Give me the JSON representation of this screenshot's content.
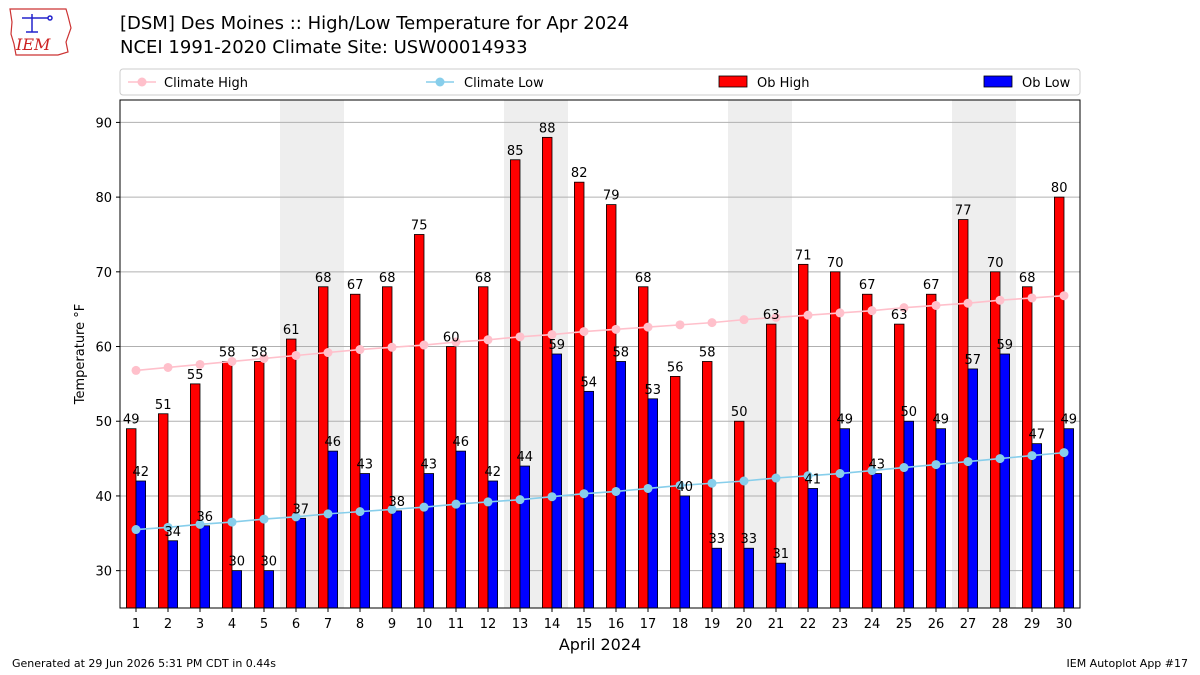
{
  "header": {
    "logo_text": "IEM",
    "title": "[DSM] Des Moines :: High/Low Temperature for Apr 2024",
    "subtitle": "NCEI 1991-2020 Climate Site: USW00014933"
  },
  "footer": {
    "generated": "Generated at 29 Jun 2026 5:31 PM CDT in 0.44s",
    "app": "IEM Autoplot App #17"
  },
  "colors": {
    "ob_high": "#ff0000",
    "ob_low": "#0000ff",
    "climate_high": "#ffc0cb",
    "climate_low": "#87ceeb",
    "weekend_shade": "#eeeeee"
  },
  "chart_data": {
    "type": "bar",
    "xlabel": "April 2024",
    "ylabel": "Temperature °F",
    "ylim": [
      25,
      93
    ],
    "yticks": [
      30,
      40,
      50,
      60,
      70,
      80,
      90
    ],
    "grid": true,
    "legend_position": "top",
    "x": [
      1,
      2,
      3,
      4,
      5,
      6,
      7,
      8,
      9,
      10,
      11,
      12,
      13,
      14,
      15,
      16,
      17,
      18,
      19,
      20,
      21,
      22,
      23,
      24,
      25,
      26,
      27,
      28,
      29,
      30
    ],
    "shaded_days": [
      6,
      7,
      13,
      14,
      20,
      21,
      27,
      28
    ],
    "series": [
      {
        "name": "Climate High",
        "kind": "line",
        "values": [
          56.8,
          57.2,
          57.6,
          58.0,
          58.4,
          58.8,
          59.2,
          59.6,
          59.9,
          60.2,
          60.6,
          60.9,
          61.3,
          61.6,
          62.0,
          62.3,
          62.6,
          62.9,
          63.2,
          63.6,
          63.9,
          64.2,
          64.5,
          64.8,
          65.2,
          65.5,
          65.8,
          66.2,
          66.5,
          66.8
        ]
      },
      {
        "name": "Climate Low",
        "kind": "line",
        "values": [
          35.5,
          35.8,
          36.2,
          36.5,
          36.9,
          37.2,
          37.6,
          37.9,
          38.2,
          38.5,
          38.9,
          39.2,
          39.5,
          39.9,
          40.3,
          40.6,
          41.0,
          41.4,
          41.7,
          42.0,
          42.4,
          42.7,
          43.0,
          43.4,
          43.8,
          44.2,
          44.6,
          45.0,
          45.4,
          45.8
        ]
      },
      {
        "name": "Ob High",
        "kind": "bar",
        "values": [
          49,
          51,
          55,
          58,
          58,
          61,
          68,
          67,
          68,
          75,
          60,
          68,
          85,
          88,
          82,
          79,
          68,
          56,
          58,
          50,
          63,
          71,
          70,
          67,
          63,
          67,
          77,
          70,
          68,
          80
        ]
      },
      {
        "name": "Ob Low",
        "kind": "bar",
        "values": [
          42,
          34,
          36,
          30,
          30,
          37,
          46,
          43,
          38,
          43,
          46,
          42,
          44,
          59,
          54,
          58,
          53,
          40,
          33,
          33,
          31,
          41,
          49,
          43,
          50,
          49,
          57,
          59,
          47,
          49
        ]
      }
    ]
  }
}
